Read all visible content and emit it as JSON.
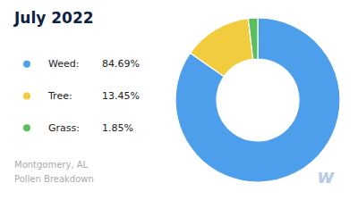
{
  "chart_data": {
    "type": "pie",
    "title": "July 2022",
    "subtitle": "Montgomery, AL\nPollen Breakdown",
    "categories": [
      "Weed:",
      "Tree:",
      "Grass:"
    ],
    "values": [
      84.69,
      13.45,
      1.85
    ],
    "value_labels": [
      "84.69%",
      "13.45%",
      "1.85%"
    ],
    "colors": [
      "#4D9FEC",
      "#F2CC3F",
      "#5CBF5F"
    ],
    "legend": "left",
    "annotations": [
      "w"
    ]
  }
}
